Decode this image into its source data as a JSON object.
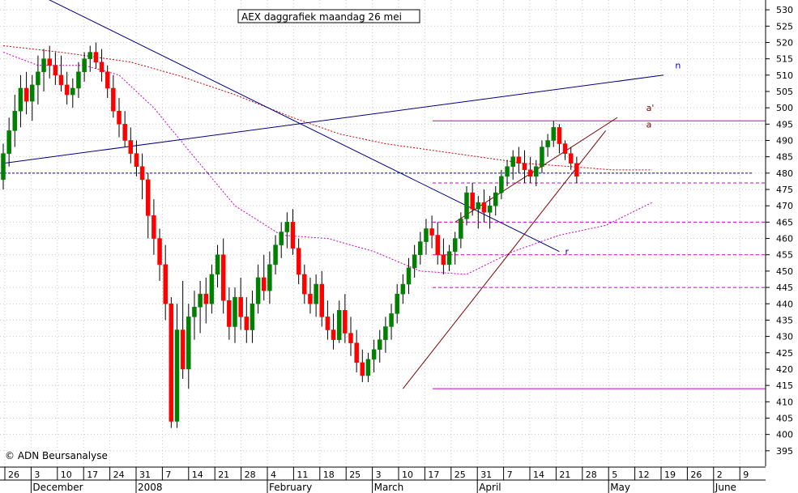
{
  "chart_data": {
    "type": "candlestick",
    "title": "AEX daggrafiek maandag 26 mei",
    "credit": "© ADN Beursanalyse",
    "ylim": [
      390,
      533
    ],
    "y_ticks": [
      395,
      400,
      405,
      410,
      415,
      420,
      425,
      430,
      435,
      440,
      445,
      450,
      455,
      460,
      465,
      470,
      475,
      480,
      485,
      490,
      495,
      500,
      505,
      510,
      515,
      520,
      525,
      530
    ],
    "x_day_ticks": [
      "26",
      "3",
      "10",
      "17",
      "24",
      "31",
      "7",
      "14",
      "21",
      "28",
      "4",
      "11",
      "18",
      "25",
      "3",
      "10",
      "17",
      "25",
      "31",
      "7",
      "14",
      "21",
      "28",
      "5",
      "12",
      "19",
      "26",
      "2",
      "9"
    ],
    "x_months": [
      "December",
      "2008",
      "February",
      "March",
      "April",
      "May",
      "June"
    ],
    "grid": true,
    "colors": {
      "up": "#008000",
      "down": "#ff0000",
      "wick": "#000000",
      "trend": "#000080",
      "support": "#cc00cc",
      "avg": "#cc0000"
    },
    "candles": [
      [
        478,
        489,
        475,
        486
      ],
      [
        486,
        497,
        482,
        493
      ],
      [
        493,
        504,
        488,
        499
      ],
      [
        499,
        510,
        494,
        506
      ],
      [
        506,
        511,
        498,
        502
      ],
      [
        502,
        510,
        496,
        507
      ],
      [
        507,
        516,
        501,
        511
      ],
      [
        511,
        518,
        505,
        515
      ],
      [
        515,
        519,
        509,
        513
      ],
      [
        513,
        517,
        507,
        510
      ],
      [
        510,
        516,
        505,
        507
      ],
      [
        507,
        511,
        501,
        504
      ],
      [
        504,
        509,
        500,
        506
      ],
      [
        506,
        514,
        503,
        511
      ],
      [
        511,
        517,
        508,
        515
      ],
      [
        515,
        519,
        511,
        517
      ],
      [
        517,
        520,
        512,
        514
      ],
      [
        514,
        518,
        508,
        511
      ],
      [
        511,
        513,
        503,
        506
      ],
      [
        506,
        510,
        497,
        499
      ],
      [
        499,
        503,
        491,
        495
      ],
      [
        495,
        499,
        488,
        490
      ],
      [
        490,
        494,
        483,
        486
      ],
      [
        486,
        490,
        479,
        482
      ],
      [
        482,
        486,
        472,
        478
      ],
      [
        478,
        480,
        460,
        467
      ],
      [
        467,
        472,
        455,
        460
      ],
      [
        460,
        463,
        447,
        452
      ],
      [
        452,
        458,
        435,
        440
      ],
      [
        440,
        442,
        402,
        404
      ],
      [
        404,
        440,
        402,
        432
      ],
      [
        432,
        447,
        417,
        420
      ],
      [
        420,
        440,
        414,
        436
      ],
      [
        436,
        444,
        429,
        439
      ],
      [
        439,
        447,
        431,
        443
      ],
      [
        443,
        448,
        434,
        440
      ],
      [
        440,
        452,
        437,
        449
      ],
      [
        449,
        458,
        445,
        455
      ],
      [
        455,
        460,
        437,
        441
      ],
      [
        441,
        445,
        429,
        433
      ],
      [
        433,
        445,
        428,
        442
      ],
      [
        442,
        448,
        432,
        436
      ],
      [
        436,
        442,
        428,
        432
      ],
      [
        432,
        444,
        428,
        440
      ],
      [
        440,
        452,
        437,
        448
      ],
      [
        448,
        455,
        441,
        444
      ],
      [
        444,
        456,
        440,
        452
      ],
      [
        452,
        461,
        449,
        458
      ],
      [
        458,
        465,
        454,
        462
      ],
      [
        462,
        468,
        457,
        465
      ],
      [
        465,
        469,
        455,
        457
      ],
      [
        457,
        460,
        446,
        449
      ],
      [
        449,
        452,
        440,
        443
      ],
      [
        443,
        448,
        437,
        440
      ],
      [
        440,
        449,
        436,
        446
      ],
      [
        446,
        450,
        433,
        436
      ],
      [
        436,
        441,
        429,
        432
      ],
      [
        432,
        437,
        426,
        429
      ],
      [
        429,
        441,
        428,
        438
      ],
      [
        438,
        443,
        428,
        431
      ],
      [
        431,
        436,
        424,
        428
      ],
      [
        428,
        432,
        419,
        422
      ],
      [
        422,
        426,
        416,
        418
      ],
      [
        418,
        425,
        416,
        423
      ],
      [
        423,
        429,
        419,
        426
      ],
      [
        426,
        432,
        422,
        429
      ],
      [
        429,
        436,
        425,
        433
      ],
      [
        433,
        440,
        429,
        437
      ],
      [
        437,
        446,
        434,
        443
      ],
      [
        443,
        449,
        440,
        446
      ],
      [
        446,
        454,
        443,
        451
      ],
      [
        451,
        458,
        448,
        455
      ],
      [
        455,
        462,
        452,
        459
      ],
      [
        459,
        466,
        455,
        463
      ],
      [
        463,
        467,
        457,
        461
      ],
      [
        461,
        465,
        452,
        455
      ],
      [
        455,
        460,
        449,
        452
      ],
      [
        452,
        458,
        450,
        456
      ],
      [
        456,
        462,
        452,
        460
      ],
      [
        460,
        468,
        457,
        466
      ],
      [
        466,
        476,
        464,
        474
      ],
      [
        474,
        477,
        467,
        469
      ],
      [
        469,
        473,
        463,
        471
      ],
      [
        471,
        475,
        465,
        468
      ],
      [
        468,
        473,
        463,
        470
      ],
      [
        470,
        476,
        467,
        474
      ],
      [
        474,
        481,
        472,
        479
      ],
      [
        479,
        484,
        476,
        482
      ],
      [
        482,
        487,
        478,
        485
      ],
      [
        485,
        488,
        480,
        483
      ],
      [
        483,
        487,
        477,
        481
      ],
      [
        481,
        485,
        477,
        479
      ],
      [
        479,
        484,
        476,
        482
      ],
      [
        482,
        490,
        480,
        488
      ],
      [
        488,
        492,
        485,
        490
      ],
      [
        490,
        496,
        488,
        494
      ],
      [
        494,
        495,
        486,
        489
      ],
      [
        489,
        490,
        484,
        486
      ],
      [
        486,
        488,
        481,
        483
      ],
      [
        483,
        485,
        477,
        479
      ]
    ],
    "trend_lines": [
      {
        "from": [
          0,
          540
        ],
        "to": [
          96,
          456
        ]
      },
      {
        "from": [
          0,
          483
        ],
        "to": [
          114,
          510
        ]
      }
    ],
    "channel": {
      "upper": [
        [
          78,
          465
        ],
        [
          106,
          497
        ]
      ],
      "lower": [
        [
          69,
          414
        ],
        [
          104,
          493
        ]
      ]
    },
    "support_levels": [
      496,
      477,
      465,
      455,
      445,
      414
    ],
    "dashed_blue_level": 480,
    "annotations": [
      {
        "label": "n",
        "x": 116,
        "y": 512
      },
      {
        "label": "a'",
        "x": 111,
        "y": 499
      },
      {
        "label": "a",
        "x": 111,
        "y": 494
      },
      {
        "label": "r",
        "x": 97,
        "y": 455
      }
    ],
    "moving_averages": [
      {
        "values": [
          [
            0,
            519
          ],
          [
            10,
            517
          ],
          [
            22,
            514
          ],
          [
            30,
            510
          ],
          [
            40,
            504
          ],
          [
            50,
            497
          ],
          [
            58,
            492
          ],
          [
            66,
            489
          ],
          [
            74,
            487
          ],
          [
            82,
            485
          ],
          [
            90,
            483
          ],
          [
            98,
            482
          ],
          [
            105,
            481
          ],
          [
            112,
            481
          ]
        ]
      },
      {
        "values": [
          [
            0,
            517
          ],
          [
            6,
            513
          ],
          [
            14,
            513
          ],
          [
            20,
            510
          ],
          [
            26,
            500
          ],
          [
            32,
            487
          ],
          [
            40,
            470
          ],
          [
            48,
            461
          ],
          [
            56,
            460
          ],
          [
            64,
            456
          ],
          [
            72,
            450
          ],
          [
            80,
            449
          ],
          [
            88,
            456
          ],
          [
            96,
            461
          ],
          [
            104,
            464
          ],
          [
            112,
            471
          ]
        ]
      }
    ]
  }
}
